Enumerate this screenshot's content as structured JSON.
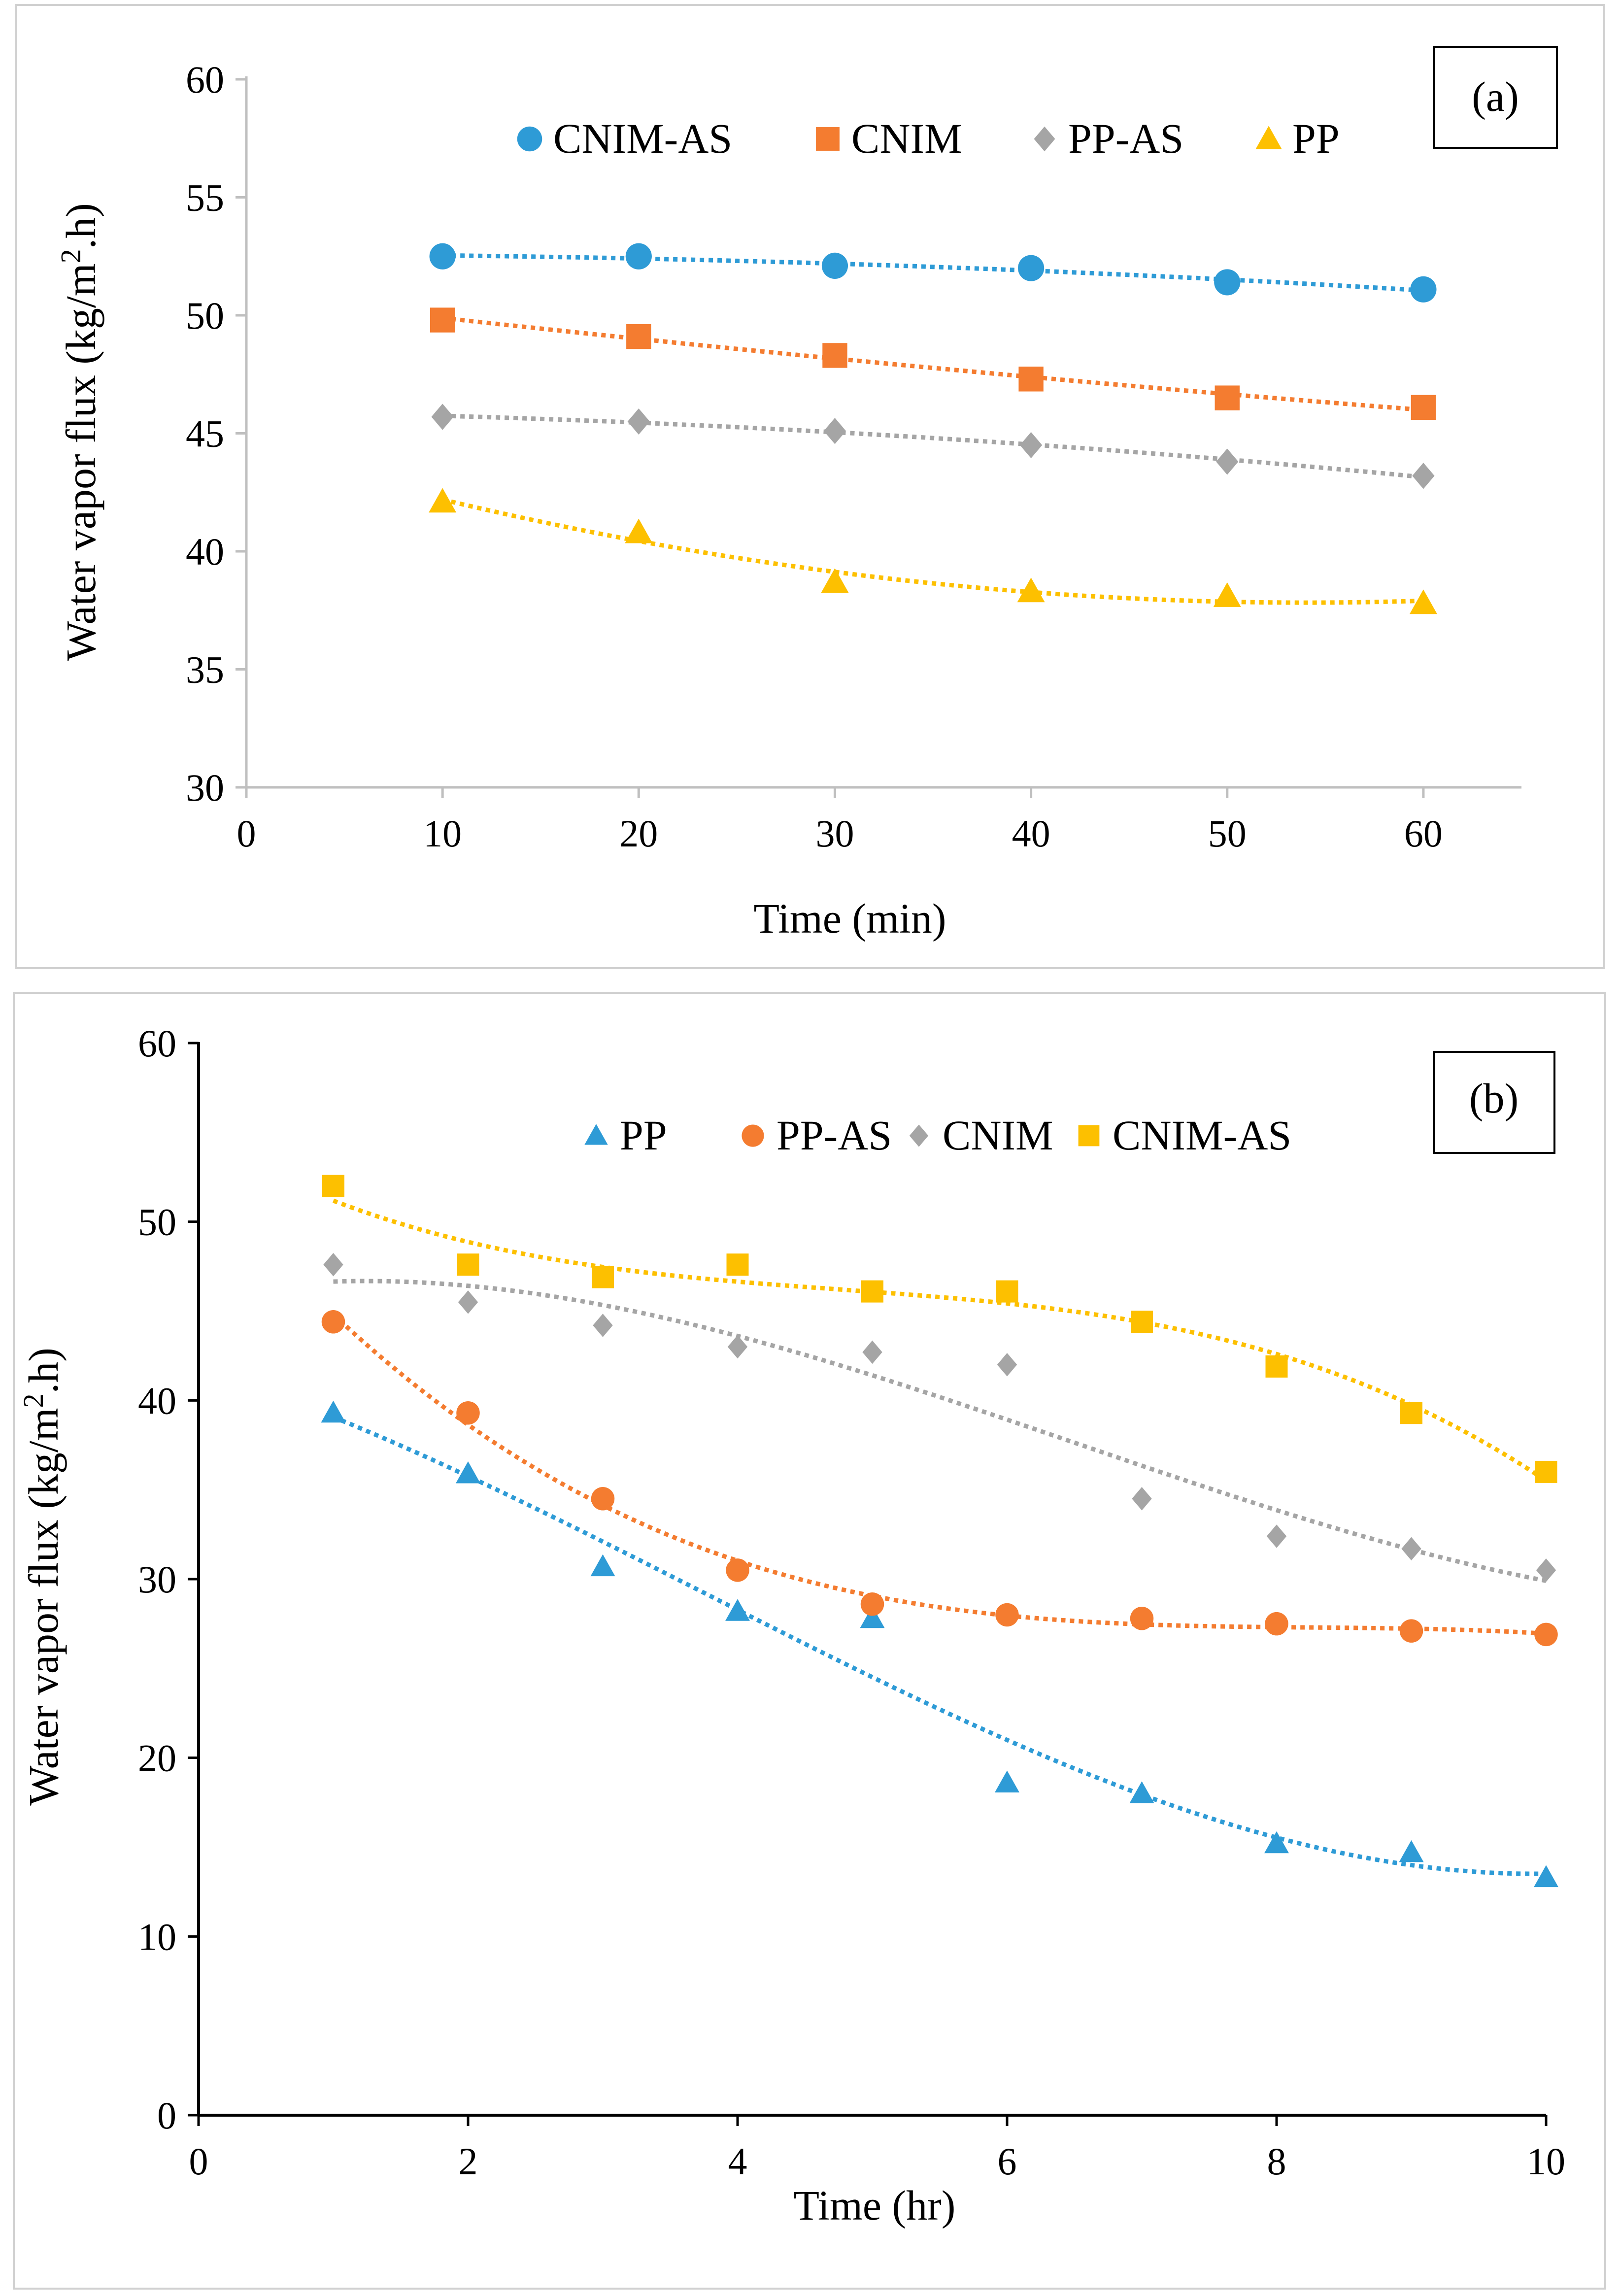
{
  "chart_data": [
    {
      "type": "scatter",
      "panel_label": "(a)",
      "xlabel": "Time (min)",
      "ylabel": "Water vapor flux (kg/m².h)",
      "ylabel_parts": {
        "pre": "Water vapor flux (kg/m",
        "sup": "2",
        "post": ".h)"
      },
      "xlim": [
        0,
        65
      ],
      "ylim": [
        30,
        60
      ],
      "xticks": [
        0,
        10,
        20,
        30,
        40,
        50,
        60
      ],
      "yticks": [
        30,
        35,
        40,
        45,
        50,
        55,
        60
      ],
      "grid": false,
      "legend_position": "top-center",
      "series": [
        {
          "name": "CNIM-AS",
          "marker": "circle",
          "color": "#2e9bd6",
          "trendline": "dotted",
          "x": [
            10,
            20,
            30,
            40,
            50,
            60
          ],
          "values": [
            52.5,
            52.5,
            52.1,
            52.0,
            51.4,
            51.1
          ]
        },
        {
          "name": "CNIM",
          "marker": "square",
          "color": "#f47c30",
          "trendline": "dotted",
          "x": [
            10,
            20,
            30,
            40,
            50,
            60
          ],
          "values": [
            49.8,
            49.1,
            48.3,
            47.3,
            46.5,
            46.1
          ]
        },
        {
          "name": "PP-AS",
          "marker": "diamond",
          "color": "#a5a5a5",
          "trendline": "dotted",
          "x": [
            10,
            20,
            30,
            40,
            50,
            60
          ],
          "values": [
            45.7,
            45.5,
            45.1,
            44.5,
            43.8,
            43.2
          ]
        },
        {
          "name": "PP",
          "marker": "triangle",
          "color": "#fdc000",
          "trendline": "dotted",
          "x": [
            10,
            20,
            30,
            40,
            50,
            60
          ],
          "values": [
            42.1,
            40.8,
            38.7,
            38.3,
            38.1,
            37.8
          ]
        }
      ]
    },
    {
      "type": "scatter",
      "panel_label": "(b)",
      "xlabel": "Time (hr)",
      "ylabel": "Water vapor flux (kg/m².h)",
      "ylabel_parts": {
        "pre": "Water vapor flux (kg/m",
        "sup": "2",
        "post": ".h)"
      },
      "xlim": [
        0,
        10
      ],
      "ylim": [
        0,
        60
      ],
      "xticks": [
        0,
        2,
        4,
        6,
        8,
        10
      ],
      "yticks": [
        0,
        10,
        20,
        30,
        40,
        50,
        60
      ],
      "grid": false,
      "legend_position": "top-center",
      "series": [
        {
          "name": "PP",
          "marker": "triangle",
          "color": "#2e9bd6",
          "trendline": "dotted",
          "x": [
            1,
            2,
            3,
            4,
            5,
            6,
            7,
            8,
            9,
            10
          ],
          "values": [
            39.3,
            35.9,
            30.7,
            28.2,
            27.8,
            18.6,
            18.0,
            15.2,
            14.7,
            13.3
          ]
        },
        {
          "name": "PP-AS",
          "marker": "circle",
          "color": "#f47c30",
          "trendline": "dotted",
          "x": [
            1,
            2,
            3,
            4,
            5,
            6,
            7,
            8,
            9,
            10
          ],
          "values": [
            44.4,
            39.3,
            34.5,
            30.5,
            28.6,
            28.0,
            27.8,
            27.5,
            27.1,
            26.9
          ]
        },
        {
          "name": "CNIM",
          "marker": "diamond",
          "color": "#a5a5a5",
          "trendline": "dotted",
          "x": [
            1,
            2,
            3,
            4,
            5,
            6,
            7,
            8,
            9,
            10
          ],
          "values": [
            47.6,
            45.5,
            44.2,
            43.0,
            42.7,
            42.0,
            34.5,
            32.4,
            31.7,
            30.5
          ]
        },
        {
          "name": "CNIM-AS",
          "marker": "square",
          "color": "#fdc000",
          "trendline": "dotted",
          "x": [
            1,
            2,
            3,
            4,
            5,
            6,
            7,
            8,
            9,
            10
          ],
          "values": [
            52.0,
            47.6,
            46.9,
            47.6,
            46.1,
            46.1,
            44.4,
            41.9,
            39.3,
            36.0
          ]
        }
      ]
    }
  ]
}
